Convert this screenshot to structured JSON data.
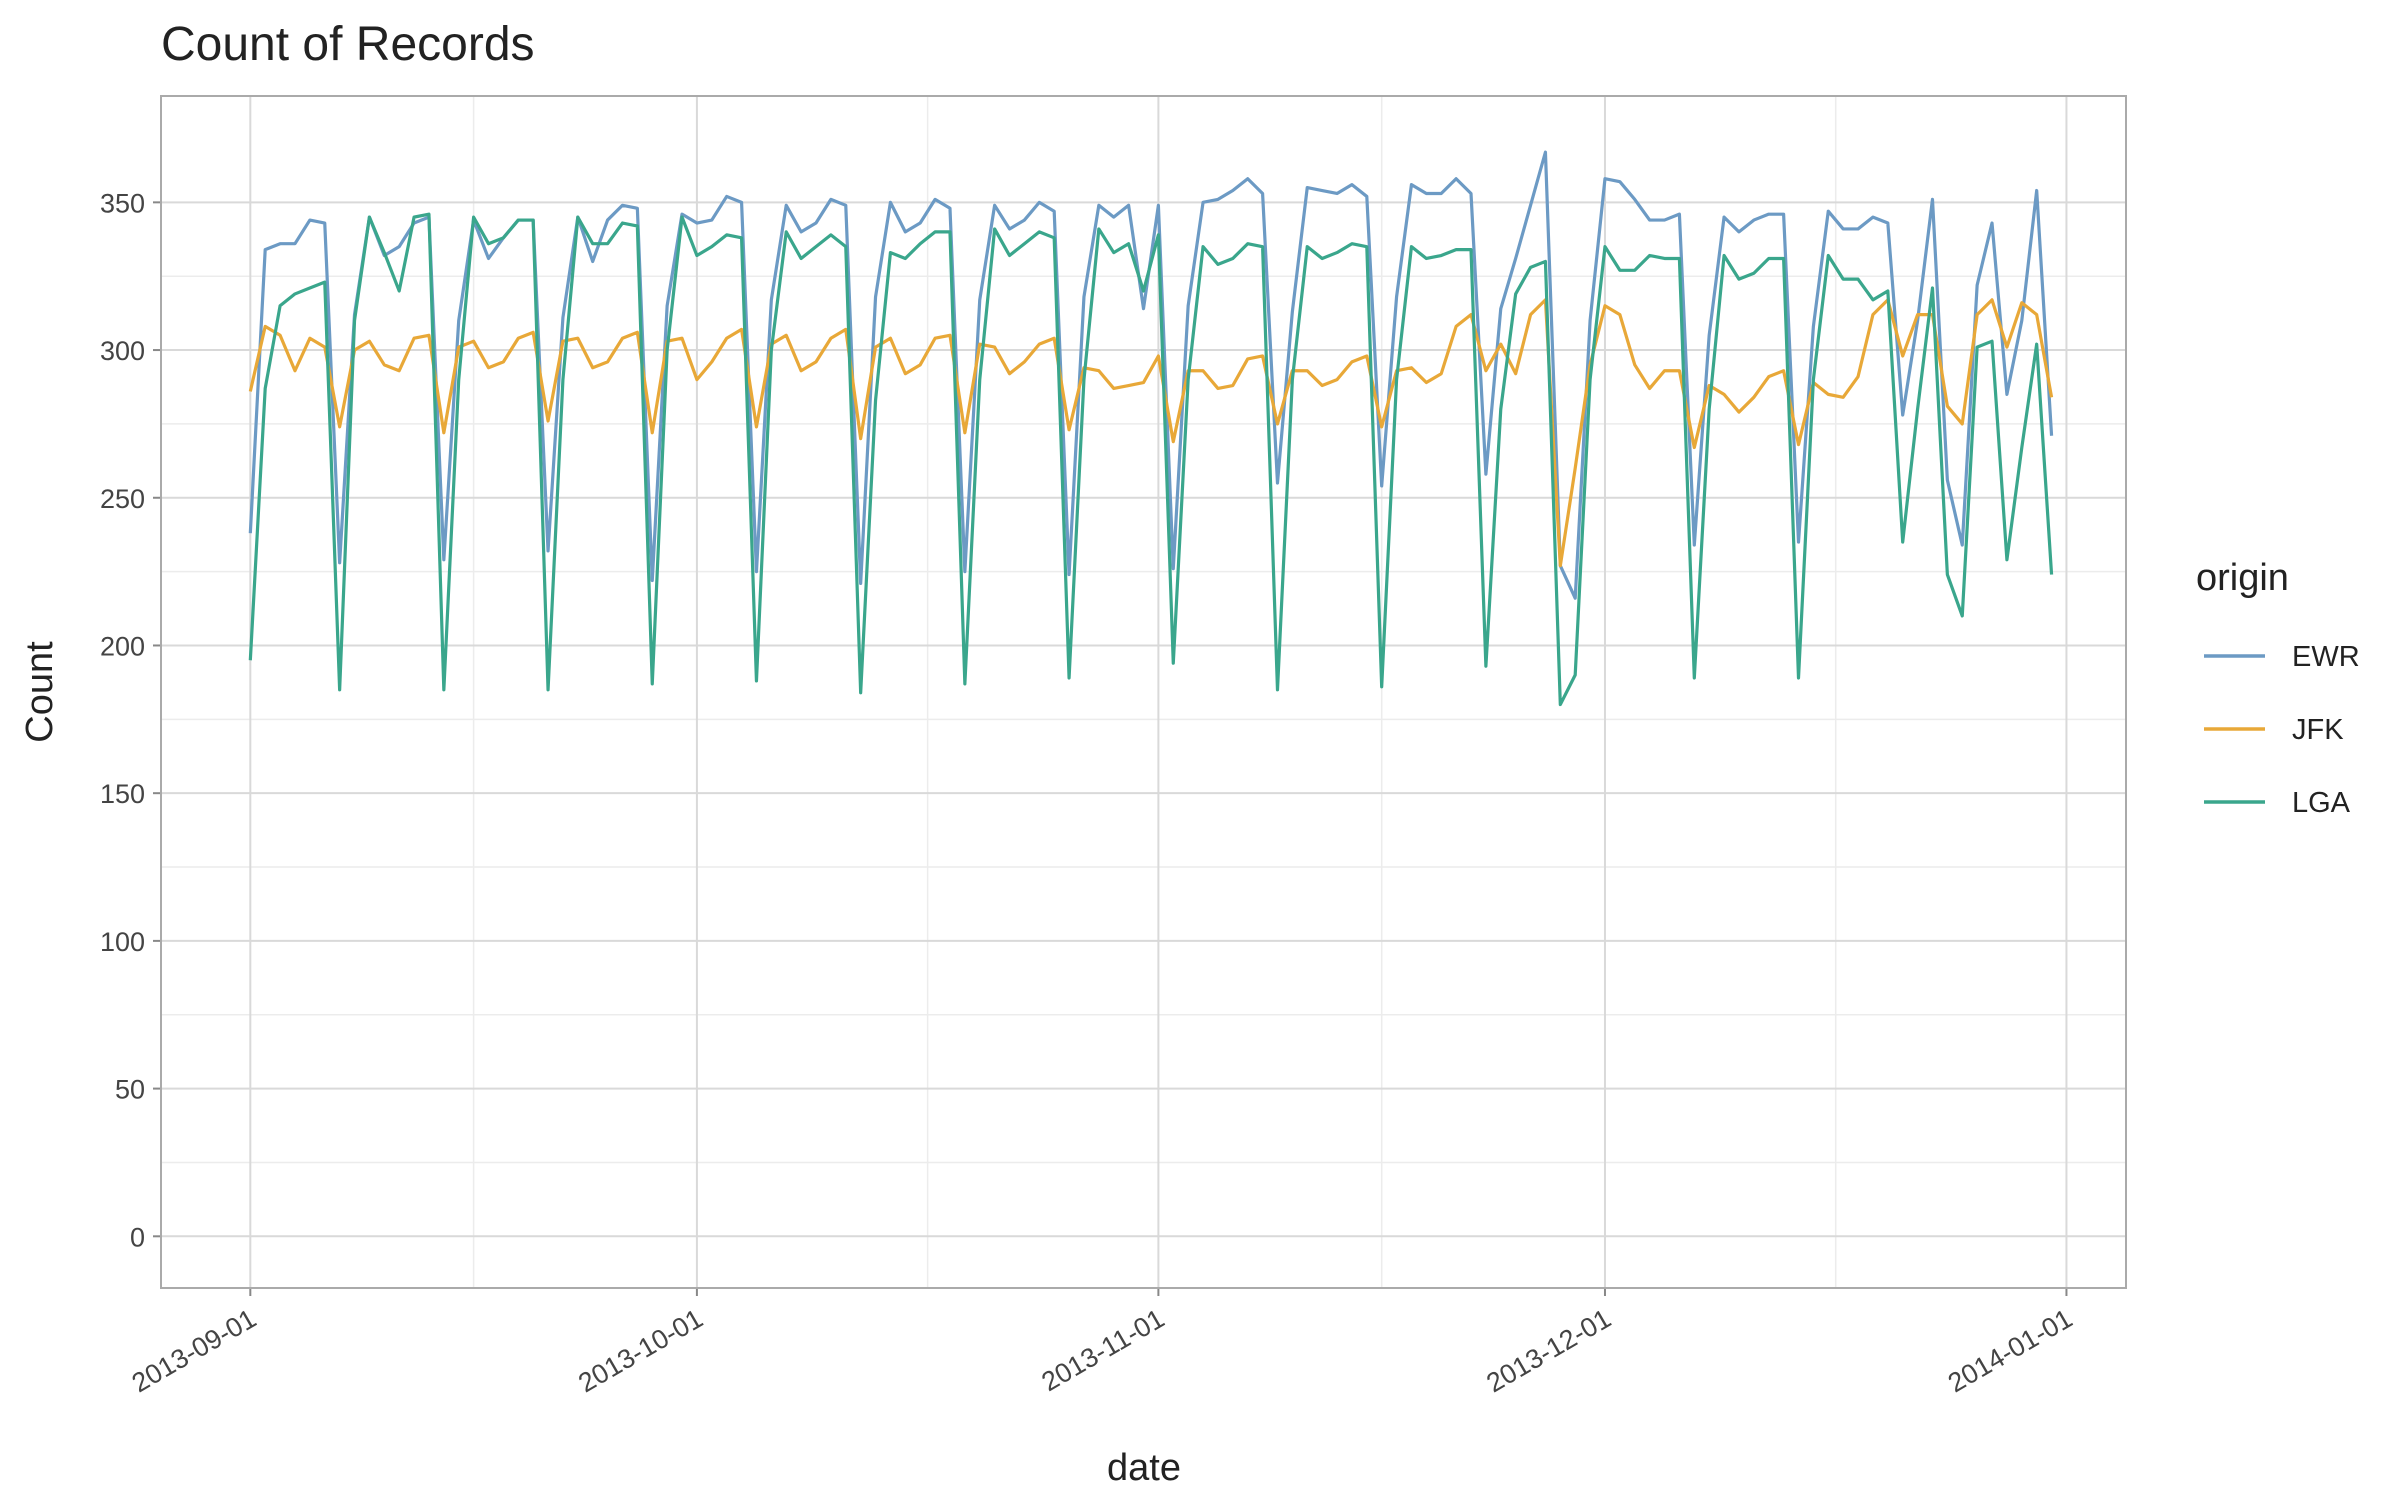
{
  "chart_data": {
    "type": "line",
    "title": "Count of Records",
    "x_label": "date",
    "y_label": "Count",
    "legend_title": "origin",
    "legend_position": "right",
    "grid": true,
    "x": [
      "2013-09-01",
      "2013-09-02",
      "2013-09-03",
      "2013-09-04",
      "2013-09-05",
      "2013-09-06",
      "2013-09-07",
      "2013-09-08",
      "2013-09-09",
      "2013-09-10",
      "2013-09-11",
      "2013-09-12",
      "2013-09-13",
      "2013-09-14",
      "2013-09-15",
      "2013-09-16",
      "2013-09-17",
      "2013-09-18",
      "2013-09-19",
      "2013-09-20",
      "2013-09-21",
      "2013-09-22",
      "2013-09-23",
      "2013-09-24",
      "2013-09-25",
      "2013-09-26",
      "2013-09-27",
      "2013-09-28",
      "2013-09-29",
      "2013-09-30",
      "2013-10-01",
      "2013-10-02",
      "2013-10-03",
      "2013-10-04",
      "2013-10-05",
      "2013-10-06",
      "2013-10-07",
      "2013-10-08",
      "2013-10-09",
      "2013-10-10",
      "2013-10-11",
      "2013-10-12",
      "2013-10-13",
      "2013-10-14",
      "2013-10-15",
      "2013-10-16",
      "2013-10-17",
      "2013-10-18",
      "2013-10-19",
      "2013-10-20",
      "2013-10-21",
      "2013-10-22",
      "2013-10-23",
      "2013-10-24",
      "2013-10-25",
      "2013-10-26",
      "2013-10-27",
      "2013-10-28",
      "2013-10-29",
      "2013-10-30",
      "2013-10-31",
      "2013-11-01",
      "2013-11-02",
      "2013-11-03",
      "2013-11-04",
      "2013-11-05",
      "2013-11-06",
      "2013-11-07",
      "2013-11-08",
      "2013-11-09",
      "2013-11-10",
      "2013-11-11",
      "2013-11-12",
      "2013-11-13",
      "2013-11-14",
      "2013-11-15",
      "2013-11-16",
      "2013-11-17",
      "2013-11-18",
      "2013-11-19",
      "2013-11-20",
      "2013-11-21",
      "2013-11-22",
      "2013-11-23",
      "2013-11-24",
      "2013-11-25",
      "2013-11-26",
      "2013-11-27",
      "2013-11-28",
      "2013-11-29",
      "2013-11-30",
      "2013-12-01",
      "2013-12-02",
      "2013-12-03",
      "2013-12-04",
      "2013-12-05",
      "2013-12-06",
      "2013-12-07",
      "2013-12-08",
      "2013-12-09",
      "2013-12-10",
      "2013-12-11",
      "2013-12-12",
      "2013-12-13",
      "2013-12-14",
      "2013-12-15",
      "2013-12-16",
      "2013-12-17",
      "2013-12-18",
      "2013-12-19",
      "2013-12-20",
      "2013-12-21",
      "2013-12-22",
      "2013-12-23",
      "2013-12-24",
      "2013-12-25",
      "2013-12-26",
      "2013-12-27",
      "2013-12-28",
      "2013-12-29",
      "2013-12-30",
      "2013-12-31"
    ],
    "series": [
      {
        "name": "EWR",
        "color": "#6c9ac4",
        "values": [
          238,
          334,
          336,
          336,
          344,
          343,
          228,
          312,
          345,
          332,
          335,
          343,
          345,
          229,
          310,
          344,
          331,
          338,
          344,
          344,
          232,
          311,
          345,
          330,
          344,
          349,
          348,
          222,
          315,
          346,
          343,
          344,
          352,
          350,
          225,
          317,
          349,
          340,
          343,
          351,
          349,
          221,
          318,
          350,
          340,
          343,
          351,
          348,
          225,
          317,
          349,
          341,
          344,
          350,
          347,
          224,
          318,
          349,
          345,
          349,
          314,
          349,
          226,
          315,
          350,
          351,
          354,
          358,
          353,
          255,
          313,
          355,
          354,
          353,
          356,
          352,
          254,
          318,
          356,
          353,
          353,
          358,
          353,
          258,
          314,
          331,
          349,
          367,
          227,
          216,
          310,
          358,
          357,
          351,
          344,
          344,
          346,
          234,
          305,
          345,
          340,
          344,
          346,
          346,
          235,
          308,
          347,
          341,
          341,
          345,
          343,
          278,
          310,
          351,
          256,
          234,
          322,
          343,
          285,
          310,
          354,
          271
        ]
      },
      {
        "name": "JFK",
        "color": "#e8a838",
        "values": [
          286,
          308,
          305,
          293,
          304,
          301,
          274,
          300,
          303,
          295,
          293,
          304,
          305,
          272,
          301,
          303,
          294,
          296,
          304,
          306,
          276,
          303,
          304,
          294,
          296,
          304,
          306,
          272,
          303,
          304,
          290,
          296,
          304,
          307,
          274,
          302,
          305,
          293,
          296,
          304,
          307,
          270,
          301,
          304,
          292,
          295,
          304,
          305,
          272,
          302,
          301,
          292,
          296,
          302,
          304,
          273,
          294,
          293,
          287,
          288,
          289,
          298,
          269,
          293,
          293,
          287,
          288,
          297,
          298,
          275,
          293,
          293,
          288,
          290,
          296,
          298,
          274,
          293,
          294,
          289,
          292,
          308,
          312,
          293,
          302,
          292,
          312,
          317,
          227,
          260,
          295,
          315,
          312,
          295,
          287,
          293,
          293,
          267,
          288,
          285,
          279,
          284,
          291,
          293,
          268,
          289,
          285,
          284,
          291,
          312,
          317,
          298,
          312,
          312,
          281,
          275,
          312,
          317,
          301,
          316,
          312,
          284
        ]
      },
      {
        "name": "LGA",
        "color": "#3aa68c",
        "values": [
          195,
          287,
          315,
          319,
          321,
          323,
          185,
          310,
          345,
          333,
          320,
          345,
          346,
          185,
          290,
          345,
          336,
          338,
          344,
          344,
          185,
          290,
          345,
          336,
          336,
          343,
          342,
          187,
          300,
          345,
          332,
          335,
          339,
          338,
          188,
          300,
          340,
          331,
          335,
          339,
          335,
          184,
          283,
          333,
          331,
          336,
          340,
          340,
          187,
          290,
          341,
          332,
          336,
          340,
          338,
          189,
          290,
          341,
          333,
          336,
          320,
          339,
          194,
          290,
          335,
          329,
          331,
          336,
          335,
          185,
          290,
          335,
          331,
          333,
          336,
          335,
          186,
          290,
          335,
          331,
          332,
          334,
          334,
          193,
          280,
          319,
          328,
          330,
          180,
          190,
          290,
          335,
          327,
          327,
          332,
          331,
          331,
          189,
          280,
          332,
          324,
          326,
          331,
          331,
          189,
          290,
          332,
          324,
          324,
          317,
          320,
          235,
          280,
          321,
          224,
          210,
          301,
          303,
          229,
          267,
          302,
          224
        ]
      }
    ],
    "xlim": [
      "2013-08-26",
      "2014-01-05"
    ],
    "xticks": [
      "2013-09-01",
      "2013-10-01",
      "2013-11-01",
      "2013-12-01",
      "2014-01-01"
    ],
    "ylim": [
      -17.5,
      386
    ],
    "yticks": [
      0,
      50,
      100,
      150,
      200,
      250,
      300,
      350
    ]
  }
}
